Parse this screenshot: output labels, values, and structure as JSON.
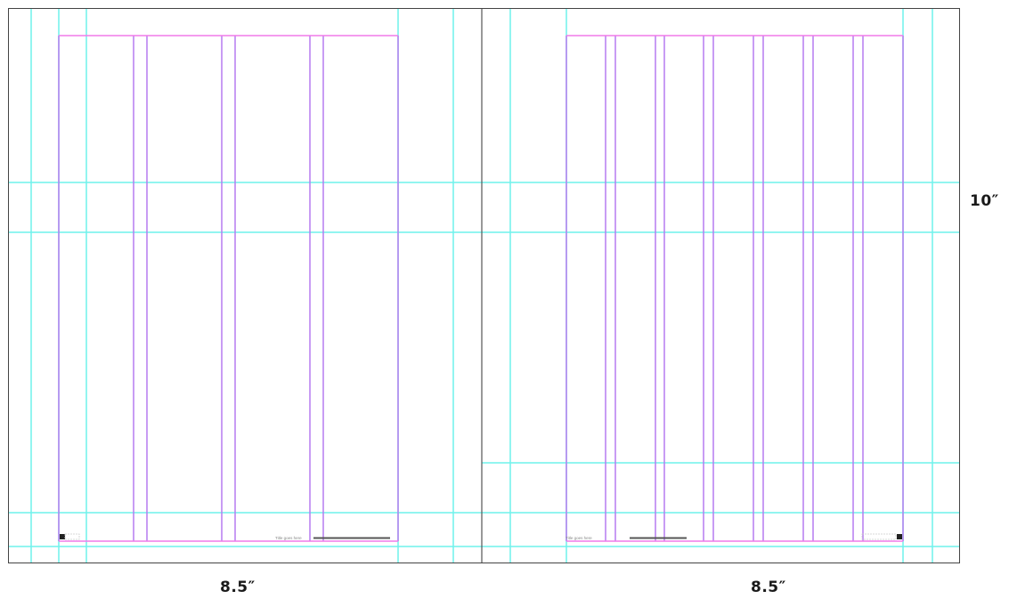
{
  "spread": {
    "description_type": "two-page layout grid",
    "colors": {
      "guide": "#6ff2ec",
      "column": "#b57cf0",
      "margin": "#f07ae8",
      "border": "#444444",
      "spine": "#555555",
      "footer_text": "#888888",
      "footer_rule": "#555555"
    },
    "left_page": {
      "columns": 4,
      "folio_icon": "page-number-marker",
      "running_footer": "Title goes here",
      "width_label": "8.5″"
    },
    "right_page": {
      "columns": 7,
      "folio_icon": "page-number-marker",
      "running_footer": "Title goes here",
      "width_label": "8.5″"
    },
    "height_label": "10″"
  }
}
